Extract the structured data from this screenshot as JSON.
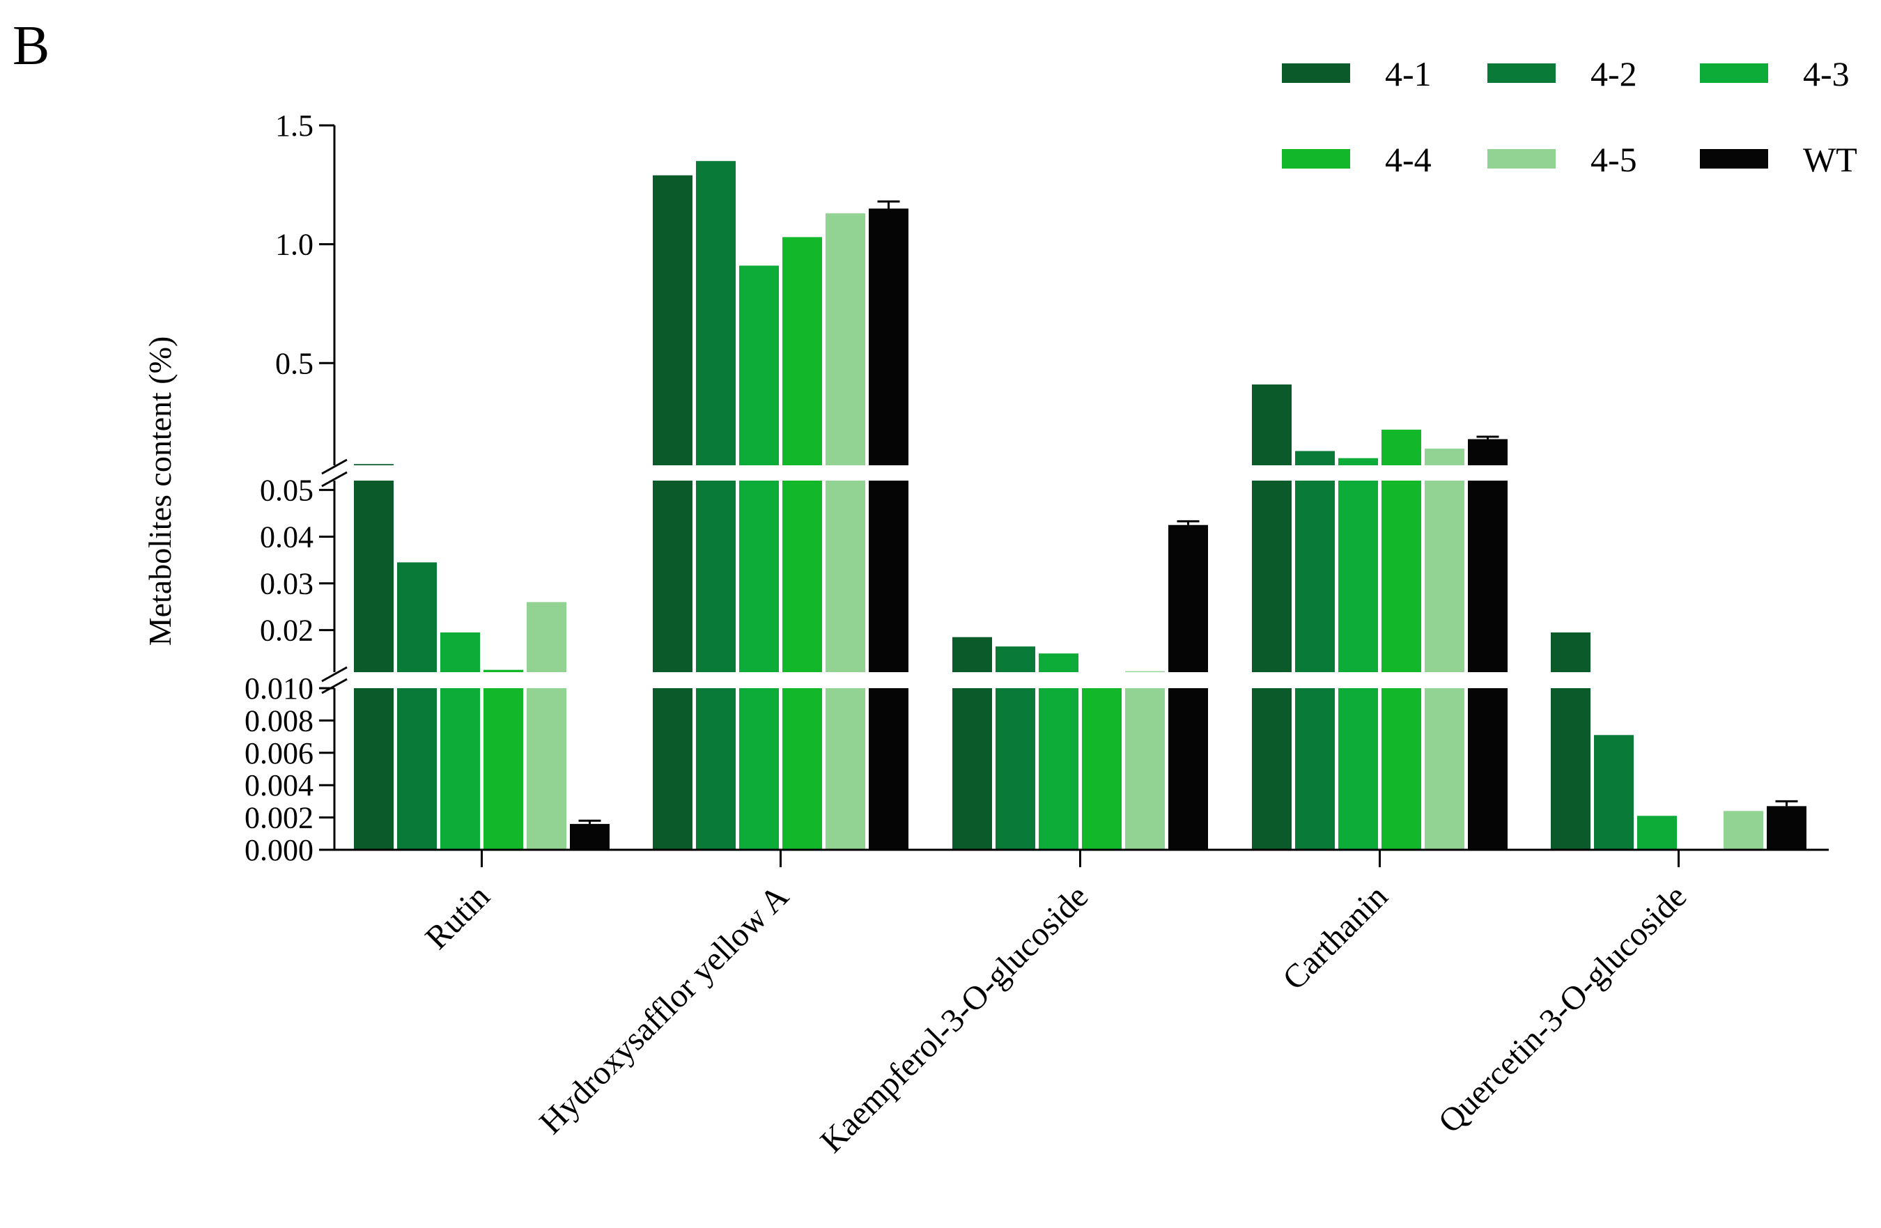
{
  "panel_label": "B",
  "chart_data": {
    "type": "bar",
    "title": "",
    "xlabel": "",
    "ylabel": "Metabolites content (%)",
    "axis_breaks": true,
    "segments": [
      {
        "range": [
          0,
          0.01
        ],
        "ticks": [
          {
            "value": 0.0,
            "label": "0.000"
          },
          {
            "value": 0.002,
            "label": "0.002"
          },
          {
            "value": 0.004,
            "label": "0.004"
          },
          {
            "value": 0.006,
            "label": "0.006"
          },
          {
            "value": 0.008,
            "label": "0.008"
          },
          {
            "value": 0.01,
            "label": "0.010"
          }
        ]
      },
      {
        "range": [
          0.011,
          0.052
        ],
        "ticks": [
          {
            "value": 0.02,
            "label": "0.02"
          },
          {
            "value": 0.03,
            "label": "0.03"
          },
          {
            "value": 0.04,
            "label": "0.04"
          },
          {
            "value": 0.05,
            "label": "0.05"
          }
        ]
      },
      {
        "range": [
          0.07,
          1.5
        ],
        "ticks": [
          {
            "value": 0.5,
            "label": "0.5"
          },
          {
            "value": 1.0,
            "label": "1.0"
          },
          {
            "value": 1.5,
            "label": "1.5"
          }
        ]
      }
    ],
    "categories": [
      "Rutin",
      "Hydroxysafflor yellow A",
      "Kaempferol-3-O-glucoside",
      "Carthanin",
      "Quercetin-3-O-glucoside"
    ],
    "series": [
      {
        "name": "4-1",
        "color": "#0a5a2a",
        "values": [
          0.075,
          1.29,
          0.0185,
          0.41,
          0.0195
        ]
      },
      {
        "name": "4-2",
        "color": "#0a7a38",
        "values": [
          0.0345,
          1.35,
          0.0165,
          0.13,
          0.0071
        ]
      },
      {
        "name": "4-3",
        "color": "#0dab38",
        "values": [
          0.0195,
          0.91,
          0.015,
          0.1,
          0.0021
        ]
      },
      {
        "name": "4-4",
        "color": "#12b82a",
        "values": [
          0.0115,
          1.03,
          0.0108,
          0.22,
          0.0
        ]
      },
      {
        "name": "4-5",
        "color": "#92d292",
        "values": [
          0.026,
          1.13,
          0.0112,
          0.14,
          0.0024
        ]
      },
      {
        "name": "WT",
        "color": "#050505",
        "values": [
          0.0016,
          1.15,
          0.0425,
          0.18,
          0.0027
        ],
        "errors": [
          0.0002,
          0.03,
          0.0008,
          0.01,
          0.0003
        ]
      }
    ],
    "legend_position": "top-right"
  }
}
